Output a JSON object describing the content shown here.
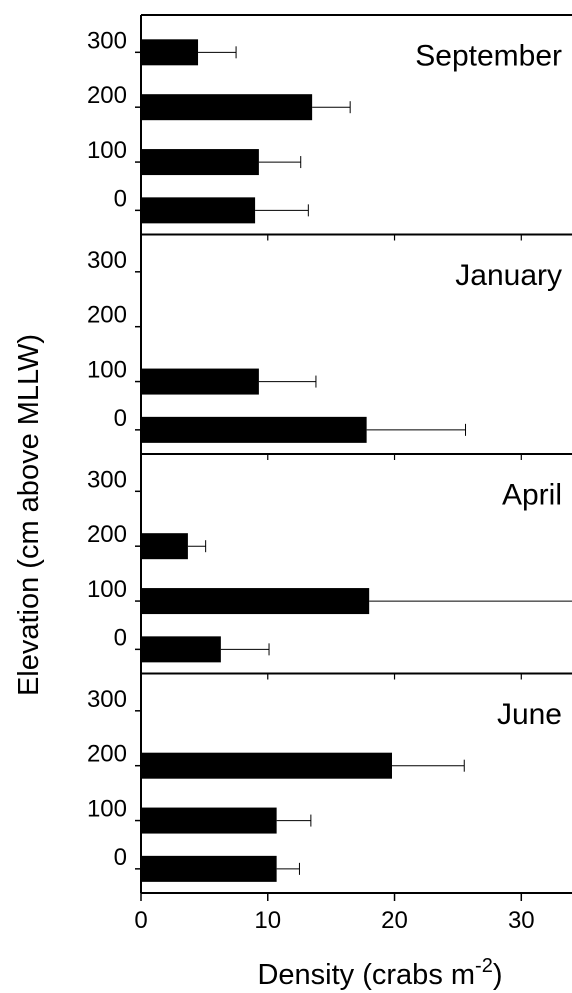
{
  "chart_data": {
    "type": "bar",
    "orientation": "horizontal",
    "xlabel": "Density (crabs m",
    "xlabel_superscript": "-2",
    "xlabel_close": ")",
    "ylabel": "Elevation (cm above MLLW)",
    "xlim": [
      0,
      34
    ],
    "xticks": [
      0,
      10,
      20,
      30
    ],
    "yticks": [
      0,
      100,
      200,
      300
    ],
    "categories": [
      "300",
      "200",
      "100",
      "0"
    ],
    "panels": [
      {
        "title": "September",
        "bars": [
          {
            "elevation": 300,
            "value": 4.5,
            "error": 3.0
          },
          {
            "elevation": 200,
            "value": 13.5,
            "error": 3.0
          },
          {
            "elevation": 100,
            "value": 9.3,
            "error": 3.3
          },
          {
            "elevation": 0,
            "value": 9.0,
            "error": 4.2
          }
        ]
      },
      {
        "title": "January",
        "bars": [
          {
            "elevation": 100,
            "value": 9.3,
            "error": 4.5
          },
          {
            "elevation": 0,
            "value": 17.8,
            "error": 7.8
          }
        ]
      },
      {
        "title": "April",
        "bars": [
          {
            "elevation": 200,
            "value": 3.7,
            "error": 1.4
          },
          {
            "elevation": 100,
            "value": 18.0,
            "error": 16.0
          },
          {
            "elevation": 0,
            "value": 6.3,
            "error": 3.8
          }
        ]
      },
      {
        "title": "June",
        "bars": [
          {
            "elevation": 200,
            "value": 19.8,
            "error": 5.7
          },
          {
            "elevation": 100,
            "value": 10.7,
            "error": 2.7
          },
          {
            "elevation": 0,
            "value": 10.7,
            "error": 1.8
          }
        ]
      }
    ]
  }
}
